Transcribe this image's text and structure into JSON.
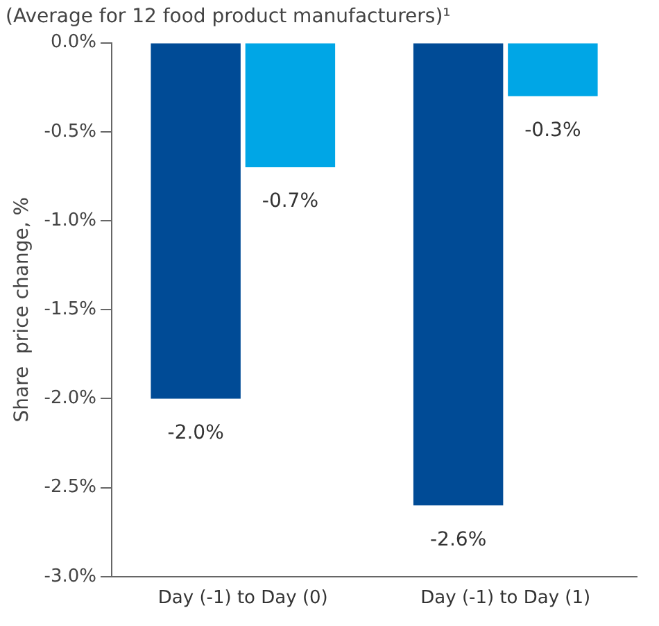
{
  "chart_data": {
    "type": "bar",
    "title": "(Average for 12 food product manufacturers)¹",
    "ylabel": "Share  price change, %",
    "categories": [
      "Day (-1) to Day (0)",
      "Day (-1) to Day (1)"
    ],
    "series": [
      {
        "color": "#004b96",
        "values": [
          -2.0,
          -2.6
        ],
        "value_labels": [
          "-2.0%",
          "-2.6%"
        ]
      },
      {
        "color": "#00a6e6",
        "values": [
          -0.7,
          -0.3
        ],
        "value_labels": [
          "-0.7%",
          "-0.3%"
        ]
      }
    ],
    "ylim": [
      -3,
      0
    ],
    "yticks": [
      {
        "value": 0,
        "label": "0.0%"
      },
      {
        "value": -0.5,
        "label": "-0.5%"
      },
      {
        "value": -1,
        "label": "-1.0%"
      },
      {
        "value": -1.5,
        "label": "-1.5%"
      },
      {
        "value": -2,
        "label": "-2.0%"
      },
      {
        "value": -2.5,
        "label": "-2.5%"
      },
      {
        "value": -3,
        "label": "-3.0%"
      }
    ],
    "grid": false,
    "legend": false
  }
}
